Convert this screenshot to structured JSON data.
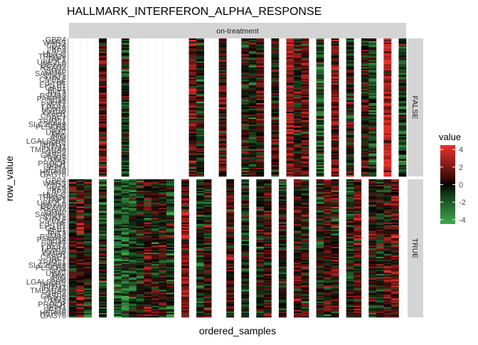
{
  "chart_data": {
    "type": "heatmap",
    "title": "HALLMARK_INTERFERON_ALPHA_RESPONSE",
    "xlabel": "ordered_samples",
    "ylabel": "row_value",
    "column_facet": {
      "label": "on-treatment"
    },
    "row_facets": [
      {
        "label": "FALSE",
        "active_columns": [
          4,
          7,
          16,
          17,
          20,
          23,
          24,
          25,
          27,
          29,
          30,
          31,
          33,
          35,
          37,
          39,
          40,
          42,
          44
        ]
      },
      {
        "label": "TRUE",
        "active_columns": [
          0,
          1,
          2,
          4,
          6,
          7,
          8,
          9,
          10,
          11,
          12,
          13,
          15,
          17,
          18,
          21,
          23,
          25,
          26,
          28,
          30,
          31,
          33,
          34,
          35,
          37,
          38,
          40,
          41,
          42,
          43
        ]
      }
    ],
    "n_sample_columns": 45,
    "n_gene_rows": 96,
    "y_tick_labels": [
      "GBP4",
      "WARS",
      "CD74",
      "IRF9",
      "LAP3",
      "HLA-C",
      "TRIM26",
      "TAP1",
      "UBE2L6",
      "DDX60",
      "RSAD2",
      "ISG20",
      "SAMD9L",
      "STAT2",
      "CMPK2",
      "LY6E",
      "EPSTI1",
      "OAS1",
      "ELF1",
      "IFIT3",
      "PSMB8",
      "PARP14",
      "IFI35",
      "PNPT1",
      "LPAR6",
      "USP18",
      "GMPR",
      "CASP1",
      "IRF7",
      "TRIM21",
      "SLC25A28",
      "PLSCR1",
      "CNP",
      "UBA7",
      "NMI",
      "B2M",
      "LGALS3BP",
      "TRIM14",
      "IFITM1",
      "TMEM140",
      "GBP2",
      "CASP8",
      "TRIM5",
      "MX1",
      "PROCR",
      "IFIH1",
      "SP110",
      "HERC6",
      "GAG76"
    ],
    "y_tick_labels_true_panel_last": "GAG76",
    "legend": {
      "title": "value",
      "ticks": [
        4,
        2,
        0,
        -2,
        -4
      ],
      "range": [
        -4.5,
        4.5
      ],
      "colors": {
        "high": "#e8302a",
        "mid": "#000000",
        "low": "#3daa4c"
      }
    },
    "colors": {
      "missing": "#ffffff",
      "strip": "#d4d4d4",
      "grid": "#ececec"
    }
  }
}
